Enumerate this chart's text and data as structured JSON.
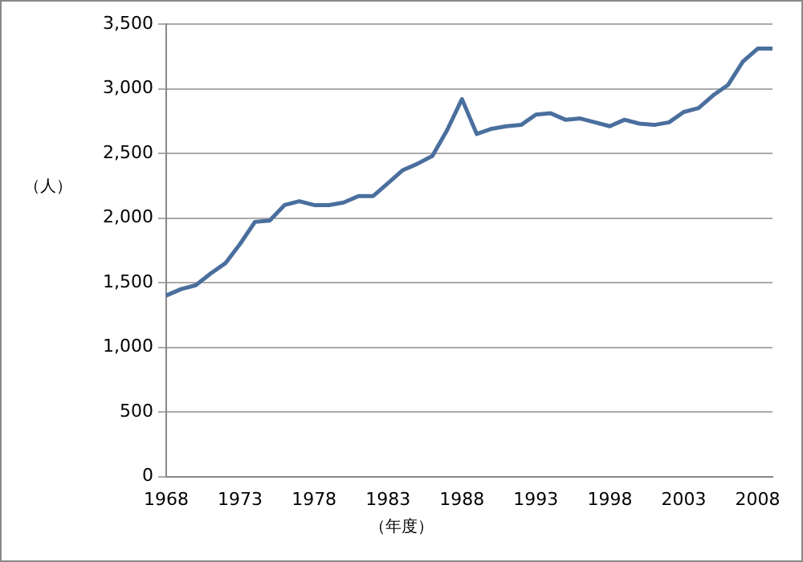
{
  "chart_data": {
    "type": "line",
    "xlabel": "（年度）",
    "ylabel": "（人）",
    "categories": [
      "1968",
      null,
      null,
      null,
      null,
      "1973",
      null,
      null,
      null,
      null,
      "1978",
      null,
      null,
      null,
      null,
      "1983",
      null,
      null,
      null,
      null,
      "1988",
      null,
      null,
      null,
      null,
      "1993",
      null,
      null,
      null,
      null,
      "1998",
      null,
      null,
      null,
      null,
      "2003",
      null,
      null,
      null,
      null,
      "2008",
      null
    ],
    "series": [
      {
        "color": "#4a6f9e",
        "values": [
          1400,
          1450,
          1480,
          1570,
          1650,
          1800,
          1970,
          1980,
          2100,
          2130,
          2100,
          2100,
          2120,
          2170,
          2170,
          2270,
          2370,
          2420,
          2480,
          2680,
          2920,
          2650,
          2690,
          2710,
          2720,
          2800,
          2810,
          2760,
          2770,
          2740,
          2710,
          2760,
          2730,
          2720,
          2740,
          2820,
          2850,
          2950,
          3030,
          3210,
          3310,
          3310
        ]
      }
    ],
    "ylim": [
      0,
      3500
    ],
    "yticks": [
      0,
      500,
      {
        "value": 1000,
        "label": "1,000"
      },
      {
        "value": 1500,
        "label": "1,500"
      },
      {
        "value": 2000,
        "label": "2,000"
      },
      {
        "value": 2500,
        "label": "2,500"
      },
      {
        "value": 3000,
        "label": "3,000"
      },
      {
        "value": 3500,
        "label": "3,500"
      }
    ],
    "grid": "y",
    "legend": false,
    "marker": "none"
  }
}
